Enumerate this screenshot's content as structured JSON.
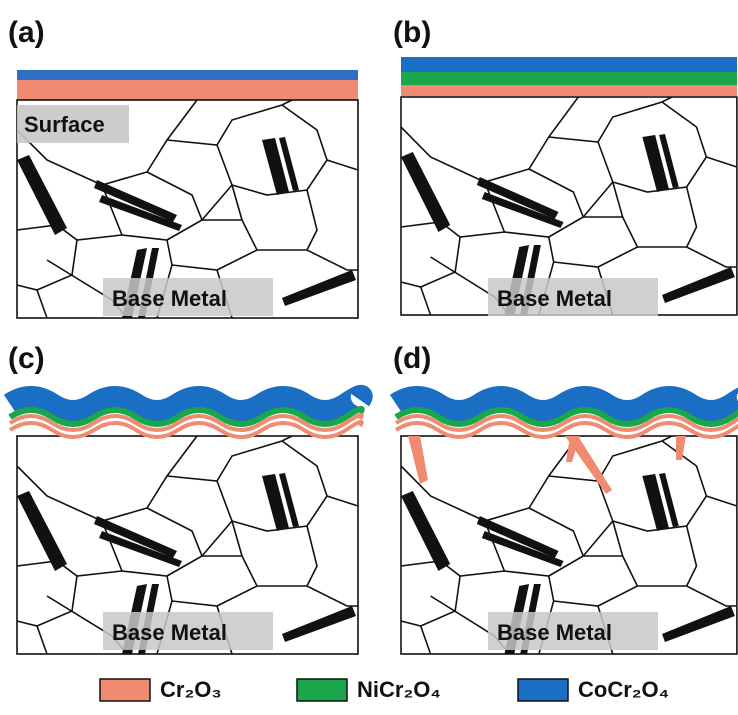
{
  "panels": [
    {
      "label": "(a)",
      "surface_label": "Surface",
      "base_label": "Base Metal"
    },
    {
      "label": "(b)",
      "base_label": "Base Metal"
    },
    {
      "label": "(c)",
      "base_label": "Base Metal"
    },
    {
      "label": "(d)",
      "base_label": "Base Metal"
    }
  ],
  "legend": [
    {
      "label": "Cr₂O₃"
    },
    {
      "label": "NiCr₂O₄"
    },
    {
      "label": "CoCr₂O₄"
    }
  ]
}
